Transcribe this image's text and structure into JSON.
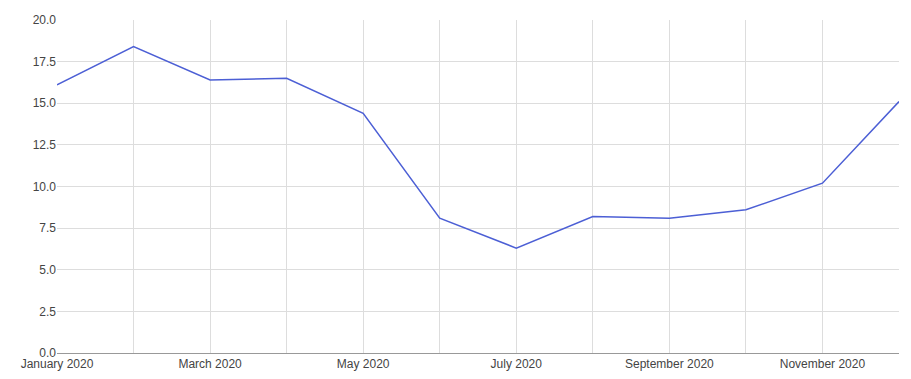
{
  "chart_data": {
    "type": "line",
    "categories": [
      "January 2020",
      null,
      "March 2020",
      null,
      "May 2020",
      null,
      "July 2020",
      null,
      "September 2020",
      null,
      "November 2020",
      null
    ],
    "values": [
      16.1,
      18.4,
      16.4,
      16.5,
      14.4,
      8.1,
      6.3,
      8.2,
      8.1,
      8.6,
      10.2,
      15.1
    ],
    "color": "#4c5fd5",
    "ylim": [
      0,
      20
    ],
    "yticks": [
      {
        "value": 0,
        "label": "0.0"
      },
      2.5,
      {
        "value": 5,
        "label": "5.0"
      },
      7.5,
      {
        "value": 10,
        "label": "10.0"
      },
      12.5,
      {
        "value": 15,
        "label": "15.0"
      },
      17.5,
      {
        "value": 20,
        "label": "20.0"
      }
    ],
    "grid": true
  }
}
